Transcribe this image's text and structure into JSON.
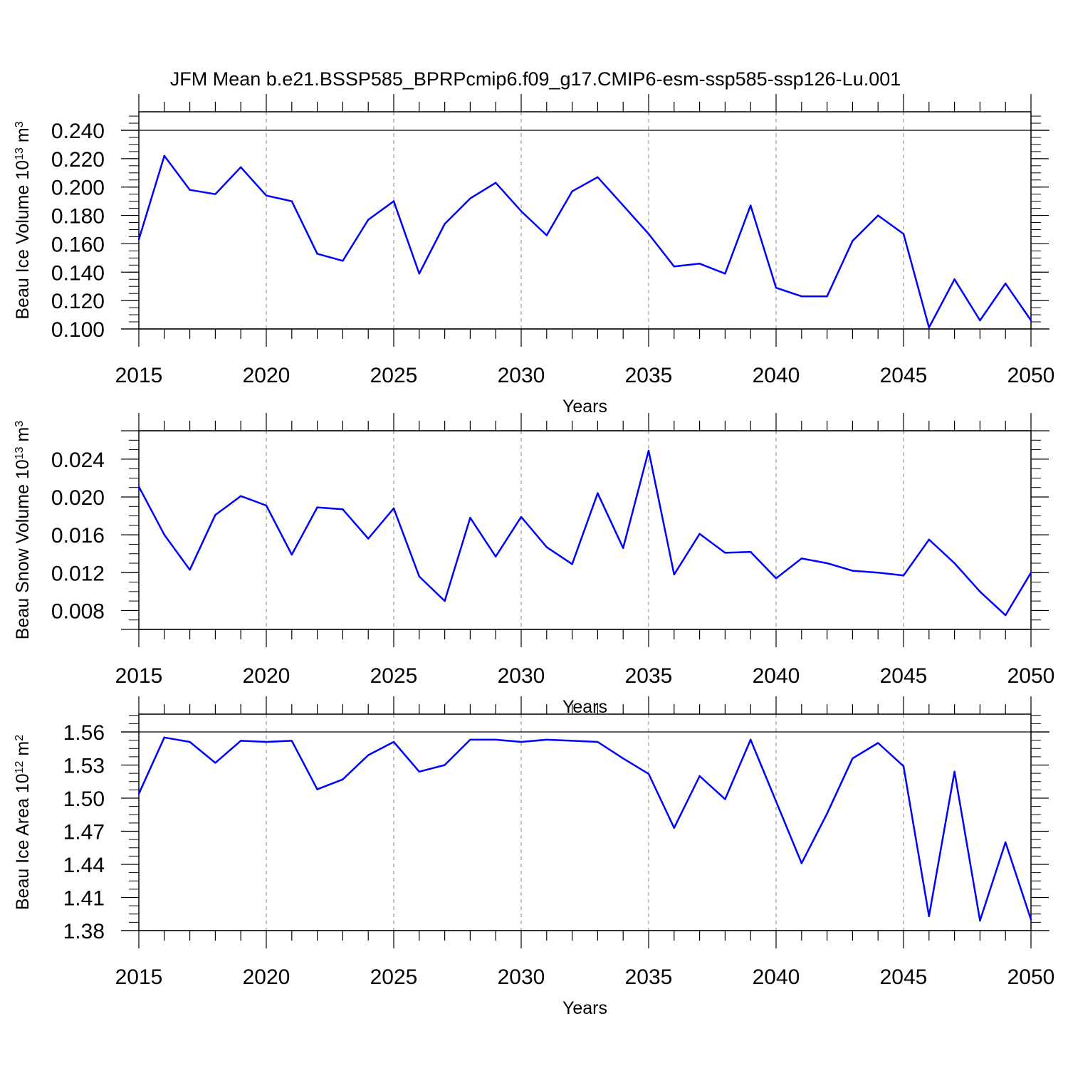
{
  "title": "JFM Mean b.e21.BSSP585_BPRPcmip6.f09_g17.CMIP6-esm-ssp585-ssp126-Lu.001",
  "colors": {
    "line": "#0000ff",
    "axis": "#000000",
    "grid": "#999999"
  },
  "chart_data": [
    {
      "type": "line",
      "ylabel": "Beau Ice Volume 10",
      "ylabel_exp": "13",
      "ylabel_unit": " m",
      "ylabel_unit_exp": "3",
      "xlabel": "Years",
      "xlim": [
        2015,
        2050
      ],
      "ylim": [
        0.1,
        0.24
      ],
      "grid": "vertical dashed at major x ticks",
      "xticks": [
        "2015",
        "2020",
        "2025",
        "2030",
        "2035",
        "2040",
        "2045",
        "2050"
      ],
      "yticks": [
        {
          "value": 0.1,
          "label": "0.100"
        },
        {
          "value": 0.12,
          "label": "0.120"
        },
        {
          "value": 0.14,
          "label": "0.140"
        },
        {
          "value": 0.16,
          "label": "0.160"
        },
        {
          "value": 0.18,
          "label": "0.180"
        },
        {
          "value": 0.2,
          "label": "0.200"
        },
        {
          "value": 0.22,
          "label": "0.220"
        },
        {
          "value": 0.24,
          "label": "0.240"
        }
      ],
      "x": [
        2015,
        2016,
        2017,
        2018,
        2019,
        2020,
        2021,
        2022,
        2023,
        2024,
        2025,
        2026,
        2027,
        2028,
        2029,
        2030,
        2031,
        2032,
        2033,
        2034,
        2035,
        2036,
        2037,
        2038,
        2039,
        2040,
        2041,
        2042,
        2043,
        2044,
        2045,
        2046,
        2047,
        2048,
        2049,
        2050
      ],
      "values": [
        0.163,
        0.222,
        0.198,
        0.195,
        0.214,
        0.194,
        0.19,
        0.153,
        0.148,
        0.177,
        0.19,
        0.139,
        0.174,
        0.192,
        0.203,
        0.183,
        0.166,
        0.197,
        0.207,
        0.187,
        0.167,
        0.144,
        0.146,
        0.139,
        0.187,
        0.129,
        0.123,
        0.123,
        0.162,
        0.18,
        0.167,
        0.101,
        0.135,
        0.106,
        0.132,
        0.106
      ]
    },
    {
      "type": "line",
      "ylabel": "Beau Snow Volume 10",
      "ylabel_exp": "13",
      "ylabel_unit": " m",
      "ylabel_unit_exp": "3",
      "xlabel": "Years",
      "xlim": [
        2015,
        2050
      ],
      "ylim": [
        0.006,
        0.027
      ],
      "grid": "vertical dashed at major x ticks",
      "xticks": [
        "2015",
        "2020",
        "2025",
        "2030",
        "2035",
        "2040",
        "2045",
        "2050"
      ],
      "yticks": [
        {
          "value": 0.008,
          "label": "0.008"
        },
        {
          "value": 0.012,
          "label": "0.012"
        },
        {
          "value": 0.016,
          "label": "0.016"
        },
        {
          "value": 0.02,
          "label": "0.020"
        },
        {
          "value": 0.024,
          "label": "0.024"
        }
      ],
      "x": [
        2015,
        2016,
        2017,
        2018,
        2019,
        2020,
        2021,
        2022,
        2023,
        2024,
        2025,
        2026,
        2027,
        2028,
        2029,
        2030,
        2031,
        2032,
        2033,
        2034,
        2035,
        2036,
        2037,
        2038,
        2039,
        2040,
        2041,
        2042,
        2043,
        2044,
        2045,
        2046,
        2047,
        2048,
        2049,
        2050
      ],
      "values": [
        0.0211,
        0.016,
        0.0123,
        0.0181,
        0.0201,
        0.0191,
        0.0139,
        0.0189,
        0.0187,
        0.0156,
        0.0188,
        0.0116,
        0.009,
        0.0178,
        0.0137,
        0.0179,
        0.0147,
        0.0129,
        0.0204,
        0.0146,
        0.0249,
        0.0118,
        0.0161,
        0.0141,
        0.0142,
        0.0114,
        0.0135,
        0.013,
        0.0122,
        0.012,
        0.0117,
        0.0155,
        0.013,
        0.01,
        0.0075,
        0.012
      ]
    },
    {
      "type": "line",
      "ylabel": "Beau Ice Area 10",
      "ylabel_exp": "12",
      "ylabel_unit": " m",
      "ylabel_unit_exp": "2",
      "xlabel": "Years",
      "xlim": [
        2015,
        2050
      ],
      "ylim": [
        1.38,
        1.56
      ],
      "grid": "vertical dashed at major x ticks",
      "xticks": [
        "2015",
        "2020",
        "2025",
        "2030",
        "2035",
        "2040",
        "2045",
        "2050"
      ],
      "yticks": [
        {
          "value": 1.38,
          "label": "1.38"
        },
        {
          "value": 1.41,
          "label": "1.41"
        },
        {
          "value": 1.44,
          "label": "1.44"
        },
        {
          "value": 1.47,
          "label": "1.47"
        },
        {
          "value": 1.5,
          "label": "1.50"
        },
        {
          "value": 1.53,
          "label": "1.53"
        },
        {
          "value": 1.56,
          "label": "1.56"
        }
      ],
      "x": [
        2015,
        2016,
        2017,
        2018,
        2019,
        2020,
        2021,
        2022,
        2023,
        2024,
        2025,
        2026,
        2027,
        2028,
        2029,
        2030,
        2031,
        2032,
        2033,
        2034,
        2035,
        2036,
        2037,
        2038,
        2039,
        2040,
        2041,
        2042,
        2043,
        2044,
        2045,
        2046,
        2047,
        2048,
        2049,
        2050
      ],
      "values": [
        1.504,
        1.555,
        1.551,
        1.532,
        1.552,
        1.551,
        1.552,
        1.508,
        1.517,
        1.539,
        1.551,
        1.524,
        1.53,
        1.553,
        1.553,
        1.551,
        1.553,
        1.552,
        1.551,
        1.536,
        1.522,
        1.473,
        1.52,
        1.499,
        1.553,
        1.497,
        1.441,
        1.486,
        1.536,
        1.55,
        1.529,
        1.393,
        1.524,
        1.389,
        1.46,
        1.39
      ]
    }
  ]
}
